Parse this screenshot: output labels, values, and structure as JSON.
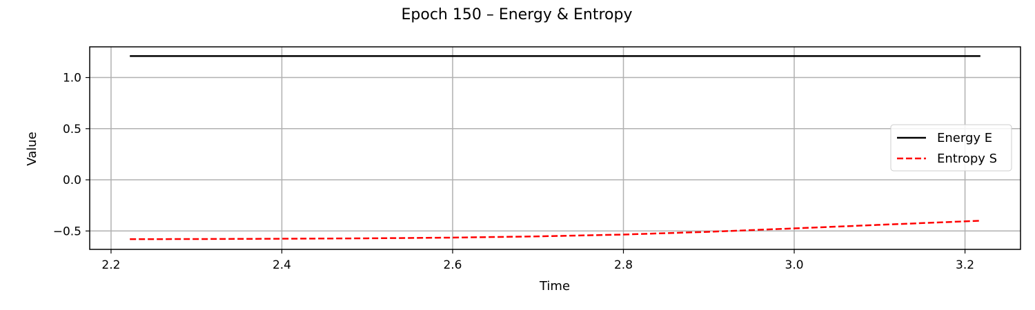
{
  "chart_data": {
    "type": "line",
    "title": "Epoch 150 – Energy & Entropy",
    "xlabel": "Time",
    "ylabel": "Value",
    "xlim": [
      2.175,
      3.265
    ],
    "ylim": [
      -0.68,
      1.3
    ],
    "xticks": [
      2.2,
      2.4,
      2.6,
      2.8,
      3.0,
      3.2
    ],
    "xtick_labels": [
      "2.2",
      "2.4",
      "2.6",
      "2.8",
      "3.0",
      "3.2"
    ],
    "yticks": [
      1.0,
      0.5,
      0.0,
      -0.5
    ],
    "ytick_labels": [
      "1.0",
      "0.5",
      "0.0",
      "−0.5"
    ],
    "grid": true,
    "legend_position": "center-right",
    "series": [
      {
        "name": "Energy E",
        "color": "#000000",
        "style": "solid",
        "x": [
          2.222,
          3.218
        ],
        "y": [
          1.21,
          1.21
        ]
      },
      {
        "name": "Entropy S",
        "color": "#ff0000",
        "style": "dashed",
        "x": [
          2.222,
          2.3,
          2.4,
          2.5,
          2.6,
          2.7,
          2.8,
          2.9,
          3.0,
          3.1,
          3.218
        ],
        "y": [
          -0.58,
          -0.579,
          -0.576,
          -0.572,
          -0.565,
          -0.553,
          -0.535,
          -0.508,
          -0.475,
          -0.44,
          -0.4
        ]
      }
    ]
  }
}
